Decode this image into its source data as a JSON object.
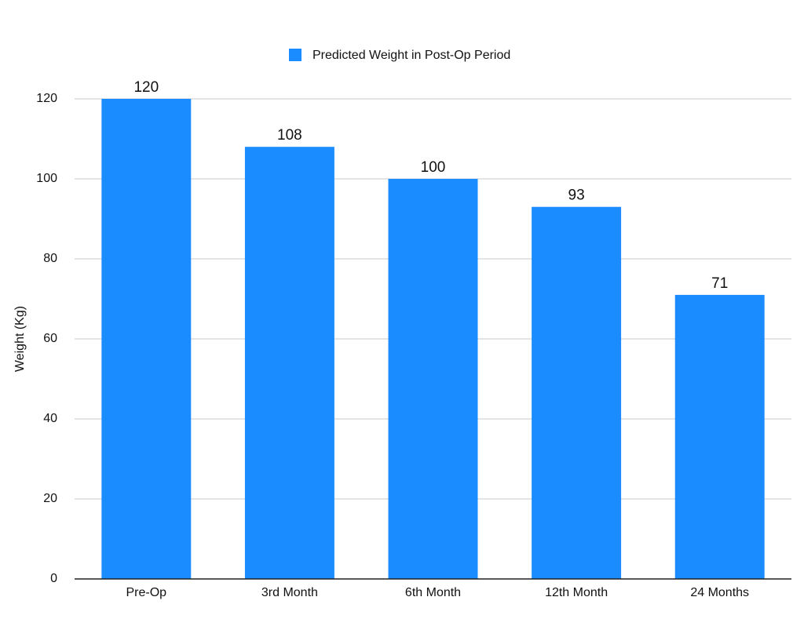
{
  "chart_data": {
    "type": "bar",
    "categories": [
      "Pre-Op",
      "3rd Month",
      "6th Month",
      "12th Month",
      "24 Months"
    ],
    "series": [
      {
        "name": "Predicted Weight in Post-Op Period",
        "color": "#1a8cff",
        "values": [
          120,
          108,
          100,
          93,
          71
        ]
      }
    ],
    "y_label": "Weight (Kg)",
    "ylim": [
      0,
      120
    ],
    "yticks": [
      0,
      20,
      40,
      60,
      80,
      100,
      120
    ],
    "grid": true,
    "legend": "top"
  }
}
